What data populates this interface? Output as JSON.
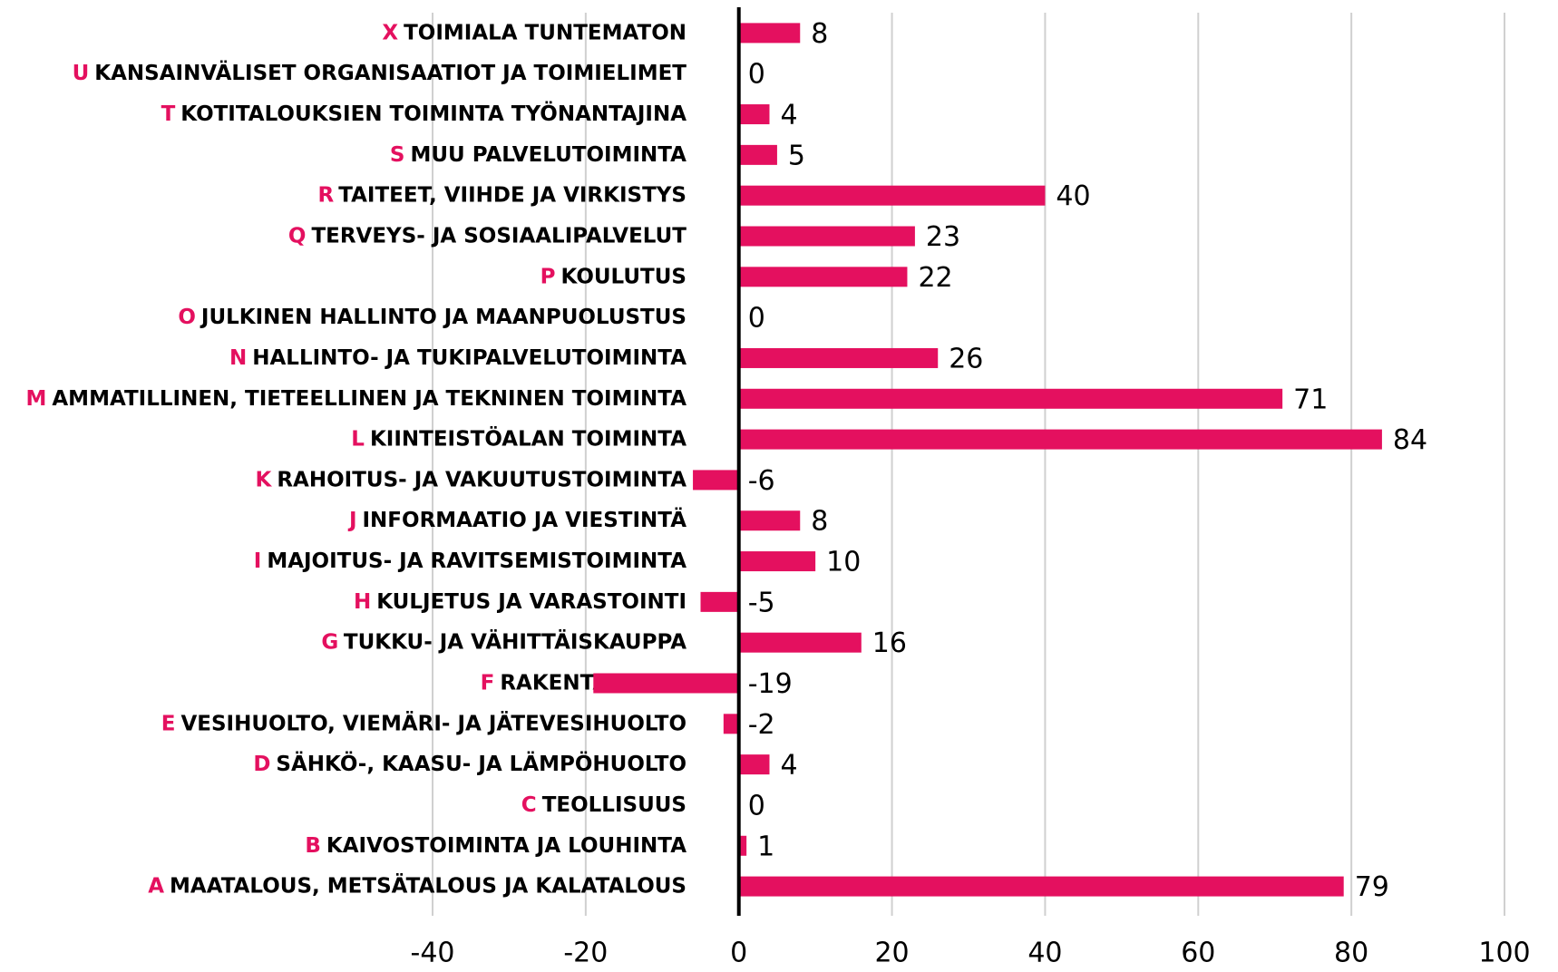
{
  "chart_data": {
    "type": "bar",
    "orientation": "horizontal",
    "codes": [
      "X",
      "U",
      "T",
      "S",
      "R",
      "Q",
      "P",
      "O",
      "N",
      "M",
      "L",
      "K",
      "J",
      "I",
      "H",
      "G",
      "F",
      "E",
      "D",
      "C",
      "B",
      "A"
    ],
    "categories": [
      "TOIMIALA TUNTEMATON",
      "KANSAINVÄLISET ORGANISAATIOT JA TOIMIELIMET",
      "KOTITALOUKSIEN TOIMINTA TYÖNANTAJINA",
      "MUU PALVELUTOIMINTA",
      "TAITEET, VIIHDE JA VIRKISTYS",
      "TERVEYS- JA SOSIAALIPALVELUT",
      "KOULUTUS",
      "JULKINEN HALLINTO JA MAANPUOLUSTUS",
      "HALLINTO- JA TUKIPALVELUTOIMINTA",
      "AMMATILLINEN, TIETEELLINEN JA TEKNINEN TOIMINTA",
      "KIINTEISTÖALAN TOIMINTA",
      "RAHOITUS- JA VAKUUTUSTOIMINTA",
      "INFORMAATIO JA VIESTINTÄ",
      "MAJOITUS- JA RAVITSEMISTOIMINTA",
      "KULJETUS JA VARASTOINTI",
      "TUKKU- JA VÄHITTÄISKAUPPA",
      "RAKENTAMINEN",
      "VESIHUOLTO, VIEMÄRI- JA JÄTEVESIHUOLTO",
      "SÄHKÖ-, KAASU- JA LÄMPÖHUOLTO",
      "TEOLLISUUS",
      "KAIVOSTOIMINTA JA LOUHINTA",
      "MAATALOUS, METSÄTALOUS JA KALATALOUS"
    ],
    "values": [
      8,
      0,
      4,
      5,
      40,
      23,
      22,
      0,
      26,
      71,
      84,
      -6,
      8,
      10,
      -5,
      16,
      -19,
      -2,
      4,
      0,
      1,
      79
    ],
    "color": "#e4105f",
    "code_color": "#e4105f",
    "xlim": [
      -40,
      100
    ],
    "xticks": [
      -40,
      -20,
      0,
      20,
      40,
      60,
      80,
      100
    ],
    "grid": true
  }
}
